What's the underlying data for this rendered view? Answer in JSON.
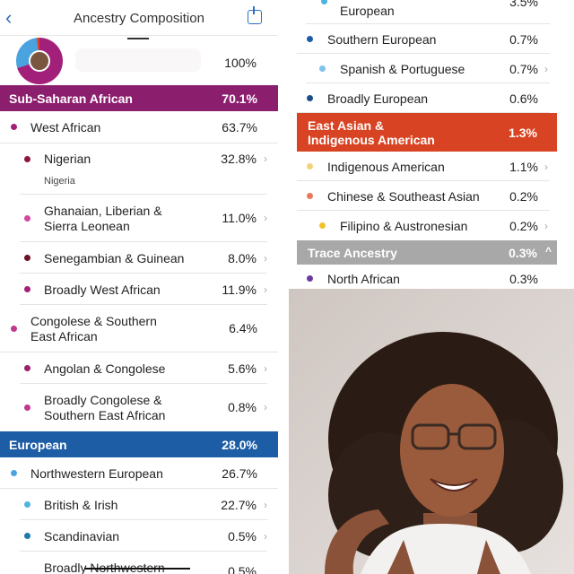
{
  "header": {
    "title": "Ancestry Composition",
    "back_icon": "chevron-left-icon",
    "share_icon": "share-icon"
  },
  "summary": {
    "total": "100%"
  },
  "colors": {
    "sub_saharan": "#8c1e6e",
    "european": "#1d5da6",
    "east_asian": "#d84423",
    "trace": "#a8a8a8"
  },
  "left": {
    "band_ssa": {
      "label": "Sub-Saharan African",
      "value": "70.1%"
    },
    "rows_ssa": [
      {
        "label": "West African",
        "value": "63.7%"
      },
      {
        "label": "Nigerian",
        "sub": "Nigeria",
        "value": "32.8%"
      },
      {
        "label_lines": [
          "Ghanaian, Liberian &",
          "Sierra Leonean"
        ],
        "value": "11.0%"
      },
      {
        "label": "Senegambian & Guinean",
        "value": "8.0%"
      },
      {
        "label": "Broadly West African",
        "value": "11.9%"
      },
      {
        "label_lines": [
          "Congolese & Southern",
          "East African"
        ],
        "value": "6.4%"
      },
      {
        "label": "Angolan & Congolese",
        "value": "5.6%"
      },
      {
        "label_lines": [
          "Broadly Congolese &",
          "Southern East African"
        ],
        "value": "0.8%"
      }
    ],
    "band_eur": {
      "label": "European",
      "value": "28.0%"
    },
    "rows_eur": [
      {
        "label": "Northwestern European",
        "value": "26.7%"
      },
      {
        "label": "British & Irish",
        "value": "22.7%"
      },
      {
        "label": "Scandinavian",
        "value": "0.5%"
      },
      {
        "label": "Broadly Northwestern",
        "value": "0.5%"
      }
    ]
  },
  "right": {
    "rows_eur": [
      {
        "label": "European",
        "value": "3.5%"
      },
      {
        "label": "Southern European",
        "value": "0.7%"
      },
      {
        "label": "Spanish & Portuguese",
        "value": "0.7%"
      },
      {
        "label": "Broadly European",
        "value": "0.6%"
      }
    ],
    "band_ea": {
      "label_lines": [
        "East Asian &",
        "Indigenous American"
      ],
      "value": "1.3%"
    },
    "rows_ea": [
      {
        "label": "Indigenous American",
        "value": "1.1%"
      },
      {
        "label": "Chinese & Southeast Asian",
        "value": "0.2%"
      },
      {
        "label": "Filipino & Austronesian",
        "value": "0.2%"
      }
    ],
    "band_trace": {
      "label": "Trace Ancestry",
      "value": "0.3%"
    },
    "rows_trace": [
      {
        "label": "North African",
        "value": "0.3%"
      }
    ]
  }
}
